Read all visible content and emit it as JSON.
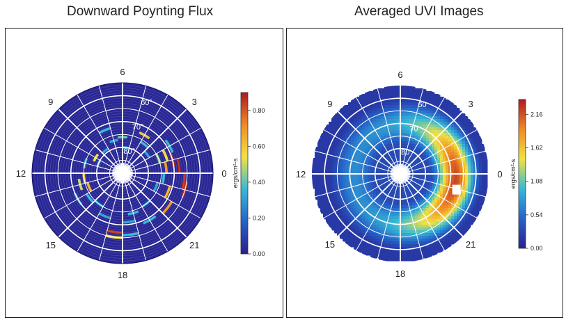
{
  "chart_data": [
    {
      "type": "heatmap",
      "title": "Downward Poynting Flux",
      "projection": "polar (MLT vs magnetic latitude)",
      "mlt_labels": [
        "6",
        "3",
        "0",
        "21",
        "18",
        "15",
        "12",
        "9"
      ],
      "latitude_labels": [
        "60°",
        "70°",
        "80°"
      ],
      "colorbar": {
        "label": "ergs/cm²-s",
        "ticks": [
          "0.00",
          "0.20",
          "0.40",
          "0.60",
          "0.80"
        ],
        "range": [
          0,
          0.9
        ],
        "colors": [
          "#2a1f8f",
          "#2563c9",
          "#36b9d6",
          "#f1e341",
          "#f08a25",
          "#b01820"
        ]
      },
      "background_value": 0.02,
      "cells": [
        {
          "mlt": 1.0,
          "lat": 69.5,
          "value": 0.85
        },
        {
          "mlt": 0.5,
          "lat": 67.5,
          "value": 0.88
        },
        {
          "mlt": 23.5,
          "lat": 65.5,
          "value": 0.86
        },
        {
          "mlt": 23.0,
          "lat": 64.5,
          "value": 0.85
        },
        {
          "mlt": 0.5,
          "lat": 72.5,
          "value": 0.7
        },
        {
          "mlt": 1.5,
          "lat": 71.5,
          "value": 0.55
        },
        {
          "mlt": 22.5,
          "lat": 70.5,
          "value": 0.65
        },
        {
          "mlt": 21.5,
          "lat": 67.5,
          "value": 0.7
        },
        {
          "mlt": 1.5,
          "lat": 74.5,
          "value": 0.45
        },
        {
          "mlt": 2.0,
          "lat": 68.5,
          "value": 0.35
        },
        {
          "mlt": 23.5,
          "lat": 73.5,
          "value": 0.35
        },
        {
          "mlt": 22.5,
          "lat": 75.5,
          "value": 0.3
        },
        {
          "mlt": 4.0,
          "lat": 72.5,
          "value": 0.6
        },
        {
          "mlt": 3.5,
          "lat": 75.5,
          "value": 0.35
        },
        {
          "mlt": 2.5,
          "lat": 77.5,
          "value": 0.3
        },
        {
          "mlt": 5.5,
          "lat": 79.5,
          "value": 0.3
        },
        {
          "mlt": 6.0,
          "lat": 75.5,
          "value": 0.4
        },
        {
          "mlt": 7.0,
          "lat": 76.5,
          "value": 0.3
        },
        {
          "mlt": 7.5,
          "lat": 71.5,
          "value": 0.35
        },
        {
          "mlt": 8.5,
          "lat": 78.5,
          "value": 0.3
        },
        {
          "mlt": 10.0,
          "lat": 77.5,
          "value": 0.55
        },
        {
          "mlt": 10.5,
          "lat": 79.5,
          "value": 0.35
        },
        {
          "mlt": 11.0,
          "lat": 74.5,
          "value": 0.3
        },
        {
          "mlt": 12.5,
          "lat": 74.5,
          "value": 0.6
        },
        {
          "mlt": 13.0,
          "lat": 72.5,
          "value": 0.5
        },
        {
          "mlt": 13.5,
          "lat": 75.5,
          "value": 0.65
        },
        {
          "mlt": 14.0,
          "lat": 69.5,
          "value": 0.3
        },
        {
          "mlt": 14.5,
          "lat": 73.5,
          "value": 0.35
        },
        {
          "mlt": 15.5,
          "lat": 74.5,
          "value": 0.3
        },
        {
          "mlt": 16.5,
          "lat": 71.5,
          "value": 0.3
        },
        {
          "mlt": 17.5,
          "lat": 66.5,
          "value": 0.85
        },
        {
          "mlt": 17.5,
          "lat": 64.5,
          "value": 0.55
        },
        {
          "mlt": 18.5,
          "lat": 65.5,
          "value": 0.35
        },
        {
          "mlt": 19.0,
          "lat": 73.5,
          "value": 0.35
        },
        {
          "mlt": 18.5,
          "lat": 70.5,
          "value": 0.3
        },
        {
          "mlt": 20.0,
          "lat": 68.5,
          "value": 0.35
        },
        {
          "mlt": 20.5,
          "lat": 74.5,
          "value": 0.3
        }
      ]
    },
    {
      "type": "heatmap",
      "title": "Averaged UVI Images",
      "projection": "polar (MLT vs magnetic latitude)",
      "mlt_labels": [
        "6",
        "3",
        "0",
        "21",
        "18",
        "15",
        "12",
        "9"
      ],
      "latitude_labels": [
        "60",
        "70",
        "80"
      ],
      "colorbar": {
        "label": "ergs/cm²-s",
        "ticks": [
          "0.00",
          "0.54",
          "1.08",
          "1.62",
          "2.16"
        ],
        "range": [
          0,
          2.4
        ],
        "colors": [
          "#2a1f8f",
          "#2563c9",
          "#36b9d6",
          "#f1e341",
          "#f08a25",
          "#b01820"
        ]
      },
      "auroral_oval": {
        "peak_latitude": 68,
        "peak_mlt": 23.5,
        "peak_value": 2.2,
        "dayside_value": 0.7,
        "polar_cap_value": 0.3
      }
    }
  ]
}
